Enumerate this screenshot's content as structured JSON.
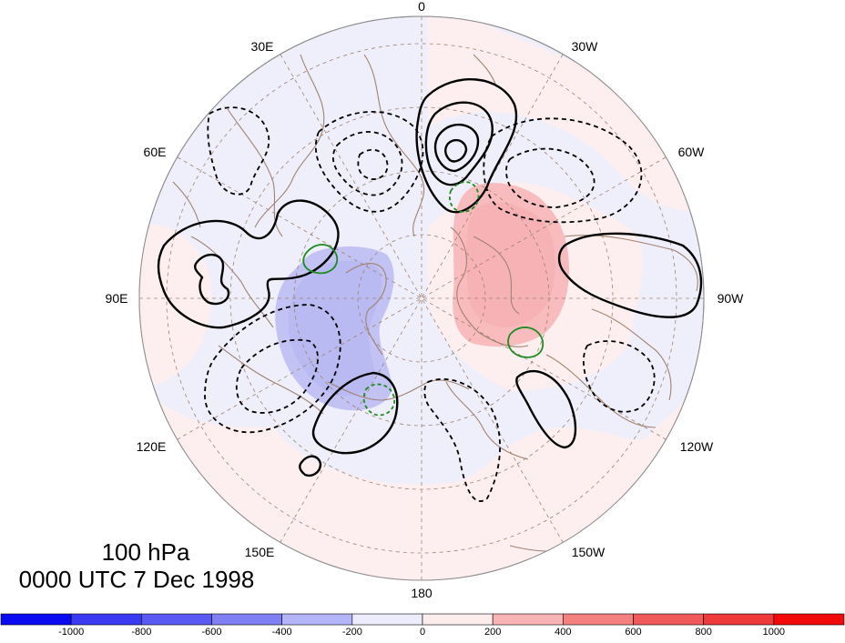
{
  "map": {
    "projection": "north-polar-stereographic",
    "field_shading": "anomaly",
    "longitude_labels": {
      "top": "0",
      "bottom": "180",
      "l30e": "30E",
      "l60e": "60E",
      "l90e": "90E",
      "l120e": "120E",
      "l150e": "150E",
      "l30w": "30W",
      "l60w": "60W",
      "l90w": "90W",
      "l120w": "120W",
      "l150w": "150W"
    },
    "colors": {
      "positive_contour": "#000000",
      "negative_contour": "#000000",
      "secondary_contour": "#1e8c1e",
      "coastline": "#a0826e",
      "grid": "#a0826e"
    }
  },
  "info": {
    "level": "100 hPa",
    "time": "0000 UTC 7 Dec 1998"
  },
  "colorbar": {
    "ticks": [
      "-1000",
      "-800",
      "-600",
      "-400",
      "-200",
      "0",
      "200",
      "400",
      "600",
      "800",
      "1000"
    ],
    "colors": [
      "#0b0bf2",
      "#3a3af2",
      "#5a5af2",
      "#8080f4",
      "#b4b4f8",
      "#ececfc",
      "#fdecec",
      "#f8b4b4",
      "#f48080",
      "#f05a5a",
      "#ee3a3a",
      "#f00a0a"
    ]
  }
}
